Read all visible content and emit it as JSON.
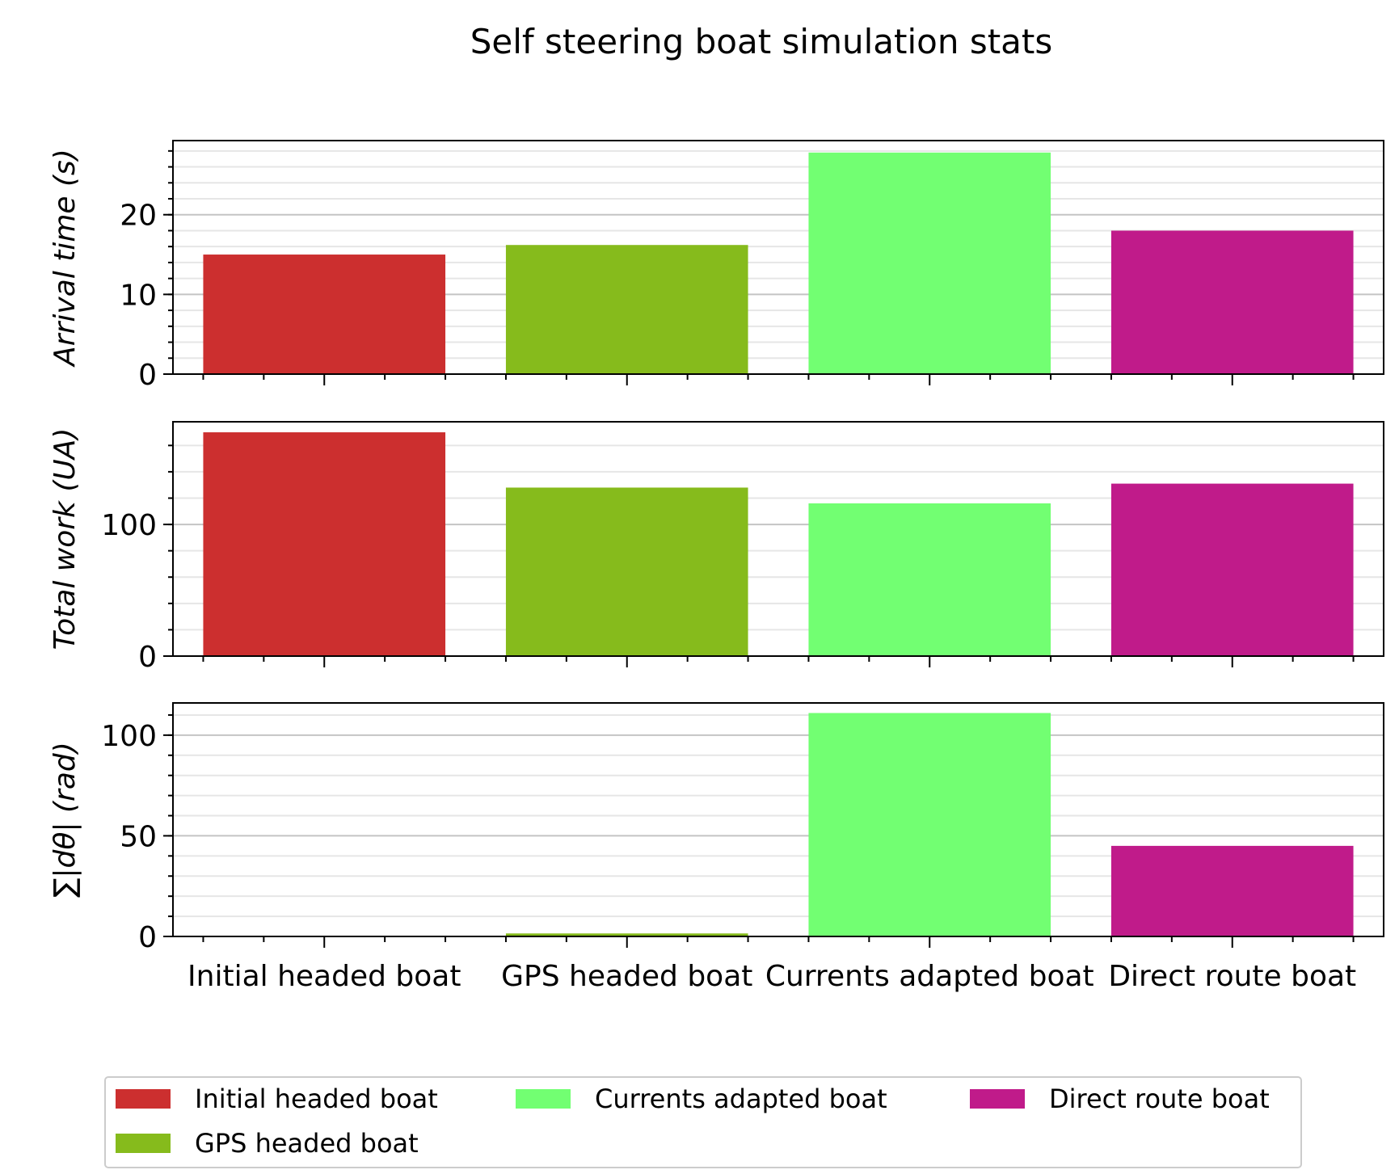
{
  "chart_data": {
    "type": "bar",
    "title": "Self steering boat simulation stats",
    "categories": [
      "Initial headed boat",
      "GPS headed boat",
      "Currents adapted boat",
      "Direct route boat"
    ],
    "colors": [
      "#cc2f2f",
      "#86bb1c",
      "#72ff72",
      "#c01b8a"
    ],
    "legend": {
      "entries": [
        "Initial headed boat",
        "GPS headed boat",
        "Currents adapted boat",
        "Direct route boat"
      ],
      "placement": "bottom-center"
    },
    "grid": true,
    "panels": [
      {
        "ylabel_parts": [
          "Arrival time (",
          "s",
          ")"
        ],
        "values": [
          15,
          16.2,
          27.8,
          18
        ],
        "ylim": [
          0,
          29.3
        ],
        "major_ticks": [
          0,
          10,
          20
        ],
        "minor_step": 2
      },
      {
        "ylabel_parts": [
          "Total work (",
          "UA",
          ")"
        ],
        "values": [
          170,
          128,
          116,
          131
        ],
        "ylim": [
          0,
          178
        ],
        "major_ticks": [
          0,
          100
        ],
        "minor_step": 20
      },
      {
        "ylabel_parts": [
          "∑|dθ| (",
          "rad",
          ")"
        ],
        "values": [
          0,
          1.5,
          111,
          45
        ],
        "ylim": [
          0,
          116
        ],
        "major_ticks": [
          0,
          50,
          100
        ],
        "minor_step": 10
      }
    ]
  }
}
